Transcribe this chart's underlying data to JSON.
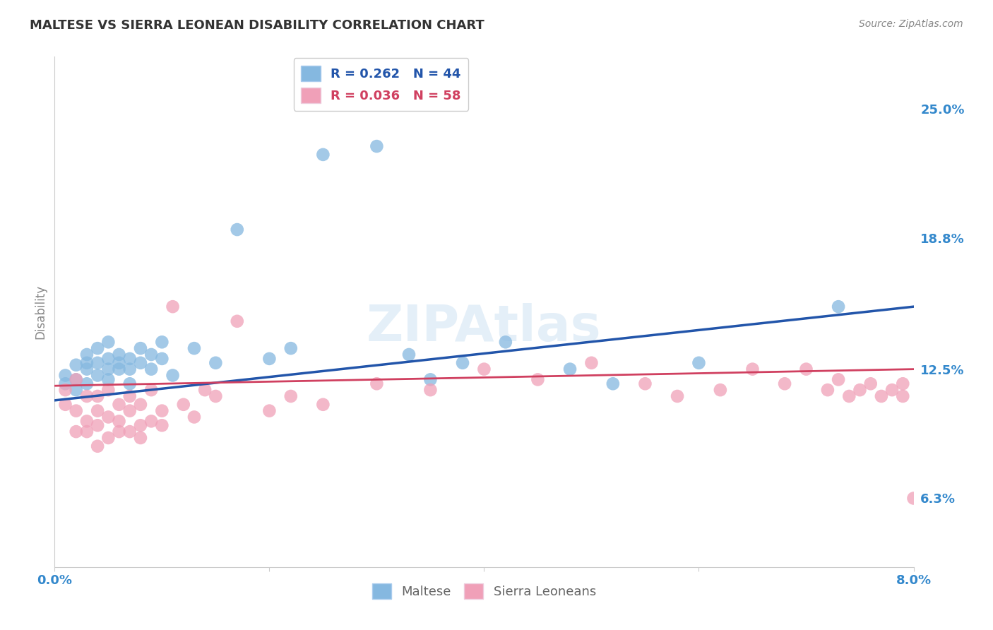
{
  "title": "MALTESE VS SIERRA LEONEAN DISABILITY CORRELATION CHART",
  "source": "Source: ZipAtlas.com",
  "ylabel": "Disability",
  "ytick_labels": [
    "6.3%",
    "12.5%",
    "18.8%",
    "25.0%"
  ],
  "ytick_values": [
    0.063,
    0.125,
    0.188,
    0.25
  ],
  "xmin": 0.0,
  "xmax": 0.08,
  "ymin": 0.03,
  "ymax": 0.275,
  "blue_R": 0.262,
  "blue_N": 44,
  "pink_R": 0.036,
  "pink_N": 58,
  "blue_color": "#85B8E0",
  "pink_color": "#F0A0B8",
  "blue_line_color": "#2255AA",
  "pink_line_color": "#D04060",
  "axis_label_color": "#3388CC",
  "background_color": "#FFFFFF",
  "grid_color": "#DDDDDD",
  "watermark": "ZIPAtlas",
  "legend_label_blue": "Maltese",
  "legend_label_pink": "Sierra Leoneans",
  "blue_x": [
    0.001,
    0.001,
    0.002,
    0.002,
    0.002,
    0.003,
    0.003,
    0.003,
    0.003,
    0.004,
    0.004,
    0.004,
    0.005,
    0.005,
    0.005,
    0.005,
    0.006,
    0.006,
    0.006,
    0.007,
    0.007,
    0.007,
    0.008,
    0.008,
    0.009,
    0.009,
    0.01,
    0.01,
    0.011,
    0.013,
    0.015,
    0.017,
    0.02,
    0.022,
    0.025,
    0.03,
    0.033,
    0.035,
    0.038,
    0.042,
    0.048,
    0.052,
    0.06,
    0.073
  ],
  "blue_y": [
    0.118,
    0.122,
    0.12,
    0.127,
    0.115,
    0.128,
    0.132,
    0.125,
    0.118,
    0.135,
    0.128,
    0.122,
    0.13,
    0.138,
    0.125,
    0.12,
    0.132,
    0.125,
    0.128,
    0.13,
    0.125,
    0.118,
    0.135,
    0.128,
    0.132,
    0.125,
    0.138,
    0.13,
    0.122,
    0.135,
    0.128,
    0.192,
    0.13,
    0.135,
    0.228,
    0.232,
    0.132,
    0.12,
    0.128,
    0.138,
    0.125,
    0.118,
    0.128,
    0.155
  ],
  "pink_x": [
    0.001,
    0.001,
    0.002,
    0.002,
    0.002,
    0.003,
    0.003,
    0.003,
    0.004,
    0.004,
    0.004,
    0.004,
    0.005,
    0.005,
    0.005,
    0.006,
    0.006,
    0.006,
    0.007,
    0.007,
    0.007,
    0.008,
    0.008,
    0.008,
    0.009,
    0.009,
    0.01,
    0.01,
    0.011,
    0.012,
    0.013,
    0.014,
    0.015,
    0.017,
    0.02,
    0.022,
    0.025,
    0.03,
    0.035,
    0.04,
    0.045,
    0.05,
    0.055,
    0.058,
    0.062,
    0.065,
    0.068,
    0.07,
    0.072,
    0.073,
    0.074,
    0.075,
    0.076,
    0.077,
    0.078,
    0.079,
    0.079,
    0.08
  ],
  "pink_y": [
    0.115,
    0.108,
    0.12,
    0.105,
    0.095,
    0.1,
    0.112,
    0.095,
    0.105,
    0.098,
    0.112,
    0.088,
    0.102,
    0.115,
    0.092,
    0.108,
    0.095,
    0.1,
    0.105,
    0.112,
    0.095,
    0.098,
    0.108,
    0.092,
    0.1,
    0.115,
    0.105,
    0.098,
    0.155,
    0.108,
    0.102,
    0.115,
    0.112,
    0.148,
    0.105,
    0.112,
    0.108,
    0.118,
    0.115,
    0.125,
    0.12,
    0.128,
    0.118,
    0.112,
    0.115,
    0.125,
    0.118,
    0.125,
    0.115,
    0.12,
    0.112,
    0.115,
    0.118,
    0.112,
    0.115,
    0.118,
    0.112,
    0.063
  ]
}
